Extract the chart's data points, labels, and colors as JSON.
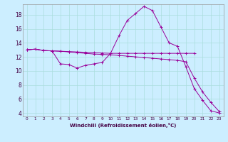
{
  "xlabel": "Windchill (Refroidissement éolien,°C)",
  "xlim": [
    -0.5,
    23.5
  ],
  "ylim": [
    3.5,
    19.5
  ],
  "yticks": [
    4,
    6,
    8,
    10,
    12,
    14,
    16,
    18
  ],
  "xticks": [
    0,
    1,
    2,
    3,
    4,
    5,
    6,
    7,
    8,
    9,
    10,
    11,
    12,
    13,
    14,
    15,
    16,
    17,
    18,
    19,
    20,
    21,
    22,
    23
  ],
  "bg_color": "#cceeff",
  "grid_color": "#aadddd",
  "line_color": "#990099",
  "line1_x": [
    0,
    1,
    2,
    3,
    4,
    5,
    6,
    7,
    8,
    9,
    10,
    11,
    12,
    13,
    14,
    15,
    16,
    17,
    18,
    19,
    20
  ],
  "line1_y": [
    13.0,
    13.1,
    12.9,
    12.85,
    12.8,
    12.75,
    12.7,
    12.65,
    12.6,
    12.55,
    12.5,
    12.5,
    12.5,
    12.5,
    12.5,
    12.5,
    12.5,
    12.5,
    12.5,
    12.5,
    12.5
  ],
  "line2_x": [
    0,
    1,
    2,
    3,
    4,
    5,
    6,
    7,
    8,
    9,
    10,
    11,
    12,
    13,
    14,
    15,
    16,
    17,
    18,
    19,
    20,
    21,
    22,
    23
  ],
  "line2_y": [
    13.0,
    13.1,
    12.9,
    12.85,
    11.0,
    10.9,
    10.4,
    10.8,
    11.0,
    11.2,
    12.5,
    15.0,
    17.2,
    18.2,
    19.2,
    18.6,
    16.3,
    14.0,
    13.5,
    10.6,
    7.5,
    5.8,
    4.3,
    4.0
  ],
  "line3_x": [
    0,
    1,
    2,
    3,
    4,
    5,
    6,
    7,
    8,
    9,
    10,
    11,
    12,
    13,
    14,
    15,
    16,
    17,
    18,
    19,
    20,
    21,
    22,
    23
  ],
  "line3_y": [
    13.0,
    13.1,
    12.9,
    12.85,
    12.8,
    12.7,
    12.6,
    12.5,
    12.4,
    12.35,
    12.3,
    12.2,
    12.1,
    12.0,
    11.9,
    11.8,
    11.7,
    11.6,
    11.5,
    11.3,
    9.0,
    7.0,
    5.5,
    4.2
  ]
}
